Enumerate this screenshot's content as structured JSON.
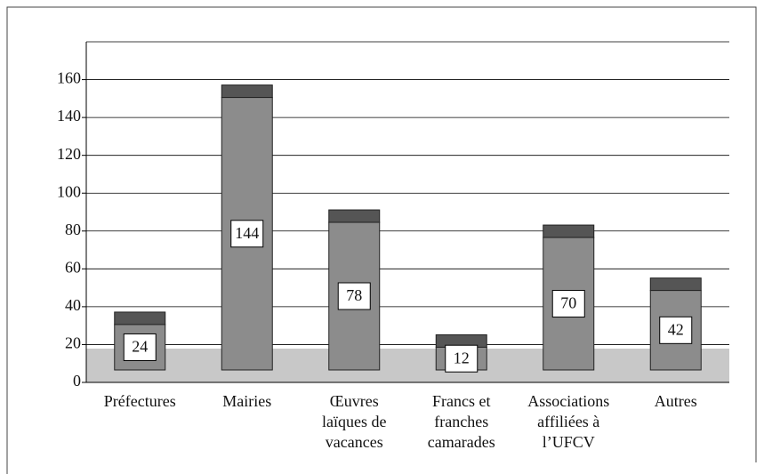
{
  "chart_data": {
    "type": "bar",
    "categories": [
      "Préfectures",
      "Mairies",
      "Œuvres laïques de vacances",
      "Francs et franches camarades",
      "Associations affiliées à l’UFCV",
      "Autres"
    ],
    "values": [
      24,
      144,
      78,
      12,
      70,
      42
    ],
    "color": "#8c8c8c",
    "cap_color": "#555555",
    "floor_color": "#c8c8c8",
    "ylim": [
      0,
      180
    ],
    "yticks": [
      0,
      20,
      40,
      60,
      80,
      100,
      120,
      140,
      160
    ],
    "grid": true
  }
}
